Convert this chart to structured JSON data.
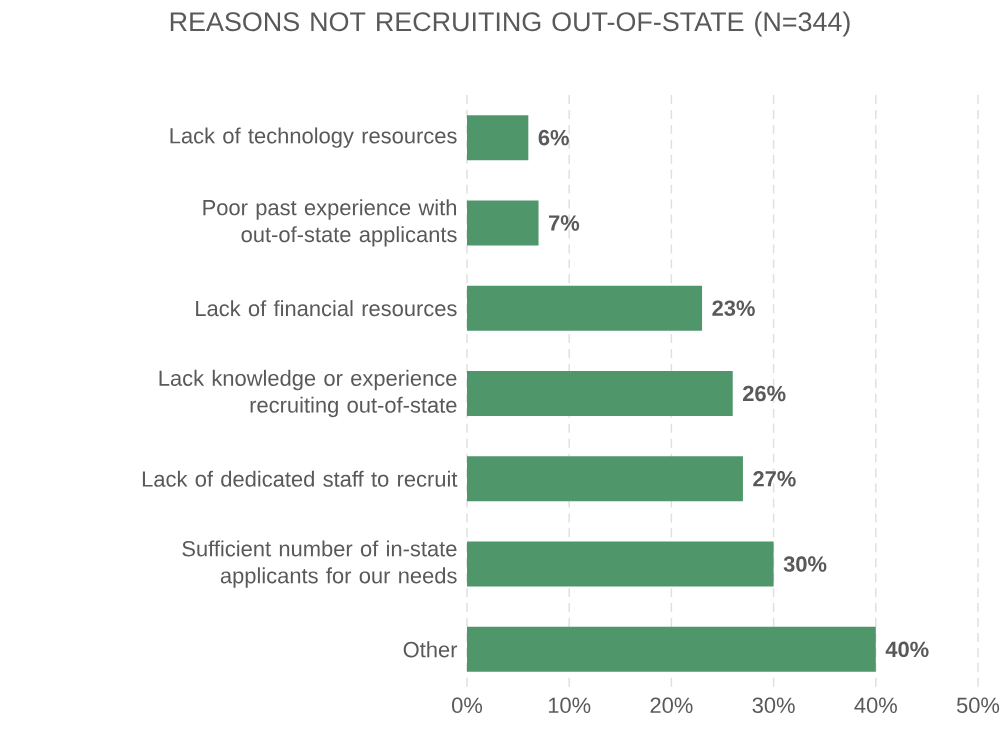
{
  "chart_data": {
    "type": "bar",
    "orientation": "horizontal",
    "title": "REASONS NOT RECRUITING OUT-OF-STATE (N=344)",
    "categories": [
      "Lack of technology resources",
      "Poor past experience with out-of-state applicants",
      "Lack of financial resources",
      "Lack knowledge or experience recruiting out-of-state",
      "Lack of dedicated staff to recruit",
      "Sufficient number of in-state applicants for our needs",
      "Other"
    ],
    "values": [
      6,
      7,
      23,
      26,
      27,
      30,
      40
    ],
    "value_labels": [
      "6%",
      "7%",
      "23%",
      "26%",
      "27%",
      "30%",
      "40%"
    ],
    "color": "#4f966b",
    "xlim": [
      0,
      50
    ],
    "xticks": [
      {
        "value": 0,
        "label": "0%"
      },
      {
        "value": 10,
        "label": "10%"
      },
      {
        "value": 20,
        "label": "20%"
      },
      {
        "value": 30,
        "label": "30%"
      },
      {
        "value": 40,
        "label": "40%"
      },
      {
        "value": 50,
        "label": "50%"
      }
    ],
    "grid": "x"
  }
}
